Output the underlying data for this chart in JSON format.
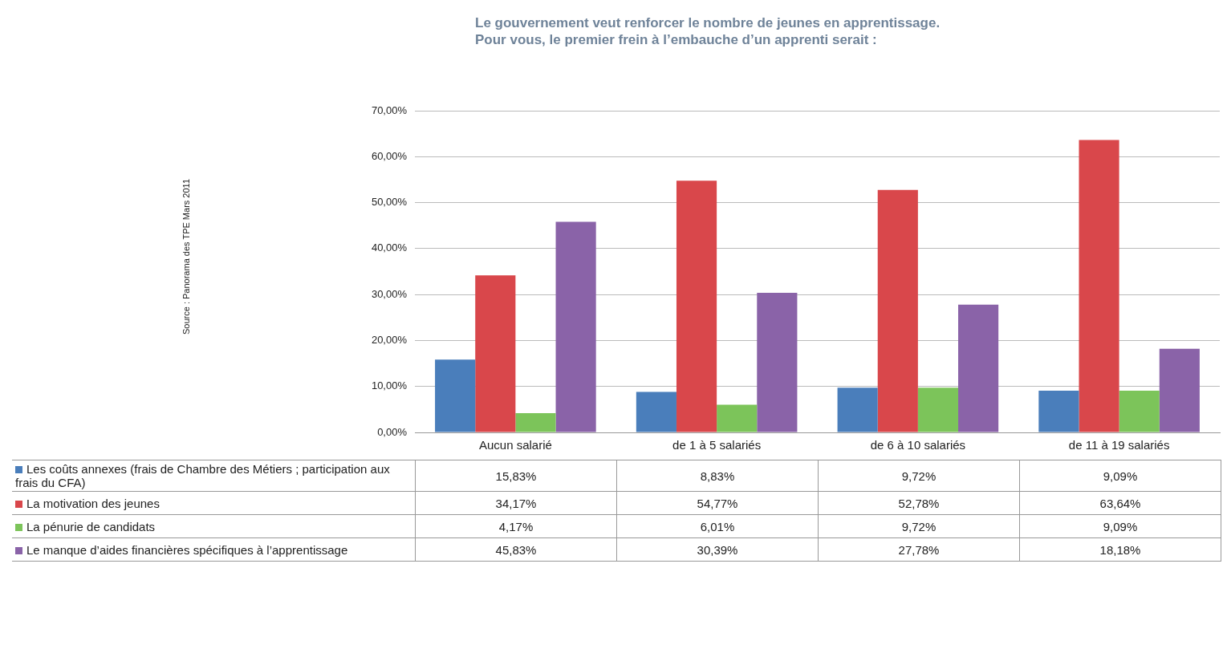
{
  "chart_data": {
    "type": "bar",
    "title": "Le gouvernement veut renforcer le nombre de jeunes en apprentissage.",
    "subtitle": "Pour vous, le premier frein à l’embauche d’un apprenti serait :",
    "annotations": [
      "Source : Panorama des TPE Mars 2011"
    ],
    "categories": [
      "Aucun salarié",
      "de 1 à 5 salariés",
      "de 6 à 10 salariés",
      "de 11 à 19 salariés"
    ],
    "series": [
      {
        "name": "Les coûts annexes (frais de Chambre des Métiers ; participation aux frais du CFA)",
        "color": "#4a7ebb",
        "values": [
          15.83,
          8.83,
          9.72,
          9.09
        ],
        "value_labels": [
          "15,83%",
          "8,83%",
          "9,72%",
          "9,09%"
        ]
      },
      {
        "name": "La motivation des jeunes",
        "color": "#d9474b",
        "values": [
          34.17,
          54.77,
          52.78,
          63.64
        ],
        "value_labels": [
          "34,17%",
          "54,77%",
          "52,78%",
          "63,64%"
        ]
      },
      {
        "name": "La pénurie de candidats",
        "color": "#7cc45a",
        "values": [
          4.17,
          6.01,
          9.72,
          9.09
        ],
        "value_labels": [
          "4,17%",
          "6,01%",
          "9,72%",
          "9,09%"
        ]
      },
      {
        "name": "Le manque d’aides financières spécifiques à l’apprentissage",
        "color": "#8a63a8",
        "values": [
          45.83,
          30.39,
          27.78,
          18.18
        ],
        "value_labels": [
          "45,83%",
          "30,39%",
          "27,78%",
          "18,18%"
        ]
      }
    ],
    "ylim": [
      0,
      70
    ],
    "yticks": [
      {
        "value": 0,
        "label": "0,00%"
      },
      {
        "value": 10,
        "label": "10,00%"
      },
      {
        "value": 20,
        "label": "20,00%"
      },
      {
        "value": 30,
        "label": "30,00%"
      },
      {
        "value": 40,
        "label": "40,00%"
      },
      {
        "value": 50,
        "label": "50,00%"
      },
      {
        "value": 60,
        "label": "60,00%"
      },
      {
        "value": 70,
        "label": "70,00%"
      }
    ],
    "grid": "y",
    "legend": "bottom left"
  }
}
